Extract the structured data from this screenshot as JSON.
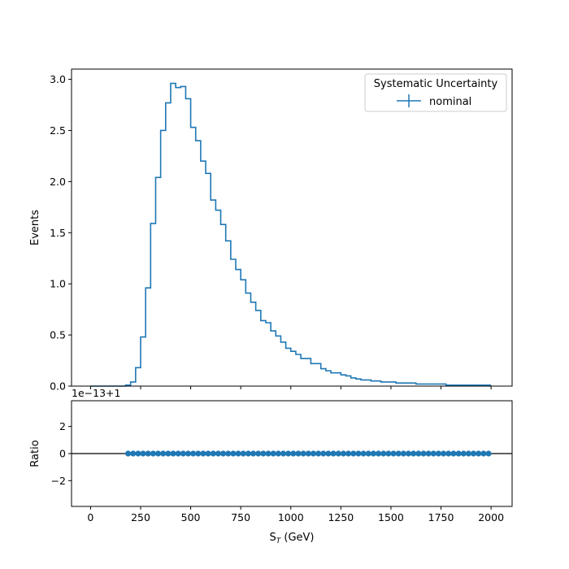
{
  "chart_data": [
    {
      "panel": "main",
      "type": "line",
      "style": "step-histogram",
      "title": "",
      "xlabel": "",
      "ylabel": "Events",
      "xlim": [
        -95,
        2105
      ],
      "ylim": [
        0,
        3.1
      ],
      "yticks": [
        0.0,
        0.5,
        1.0,
        1.5,
        2.0,
        2.5,
        3.0
      ],
      "ytick_labels": [
        "0.0",
        "0.5",
        "1.0",
        "1.5",
        "2.0",
        "2.5",
        "3.0"
      ],
      "xticks": [
        0,
        250,
        500,
        750,
        1000,
        1250,
        1500,
        1750,
        2000
      ],
      "grid": false,
      "legend": {
        "title": "Systematic Uncertainty",
        "placement": "top-right",
        "entries": [
          "nominal"
        ]
      },
      "color": "#1f77b4",
      "series": [
        {
          "name": "nominal",
          "bin_edges": [
            0,
            25,
            50,
            75,
            100,
            125,
            150,
            175,
            200,
            225,
            250,
            275,
            300,
            325,
            350,
            375,
            400,
            425,
            450,
            475,
            500,
            525,
            550,
            575,
            600,
            625,
            650,
            675,
            700,
            725,
            750,
            775,
            800,
            825,
            850,
            875,
            900,
            925,
            950,
            975,
            1000,
            1025,
            1050,
            1075,
            1100,
            1125,
            1150,
            1175,
            1200,
            1225,
            1250,
            1275,
            1300,
            1325,
            1350,
            1375,
            1400,
            1425,
            1450,
            1475,
            1500,
            1525,
            1550,
            1575,
            1600,
            1625,
            1650,
            1675,
            1700,
            1725,
            1750,
            1775,
            1800,
            1825,
            1850,
            1875,
            1900,
            1925,
            1950,
            1975,
            2000
          ],
          "values": [
            0.0,
            0.0,
            0.0,
            0.0,
            0.0,
            0.0,
            0.0,
            0.01,
            0.04,
            0.18,
            0.48,
            0.96,
            1.59,
            2.04,
            2.5,
            2.77,
            2.96,
            2.92,
            2.93,
            2.81,
            2.53,
            2.4,
            2.2,
            2.08,
            1.82,
            1.72,
            1.58,
            1.42,
            1.24,
            1.14,
            1.04,
            0.91,
            0.82,
            0.74,
            0.64,
            0.62,
            0.54,
            0.49,
            0.43,
            0.37,
            0.34,
            0.31,
            0.27,
            0.27,
            0.22,
            0.22,
            0.17,
            0.15,
            0.13,
            0.13,
            0.11,
            0.1,
            0.08,
            0.07,
            0.06,
            0.06,
            0.05,
            0.05,
            0.04,
            0.04,
            0.04,
            0.03,
            0.03,
            0.03,
            0.03,
            0.02,
            0.02,
            0.02,
            0.02,
            0.02,
            0.02,
            0.01,
            0.01,
            0.01,
            0.01,
            0.01,
            0.01,
            0.01,
            0.01,
            0.01
          ]
        }
      ]
    },
    {
      "panel": "ratio",
      "type": "scatter",
      "title": "",
      "xlabel": "S_T (GeV)",
      "ylabel": "Ratio",
      "offset_label": "1e−13+1",
      "xlim": [
        -95,
        2105
      ],
      "ylim": [
        -3.9,
        3.9
      ],
      "yticks": [
        -2,
        0,
        2
      ],
      "ytick_labels": [
        "−2",
        "0",
        "2"
      ],
      "xticks": [
        0,
        250,
        500,
        750,
        1000,
        1250,
        1500,
        1750,
        2000
      ],
      "xtick_labels": [
        "0",
        "250",
        "500",
        "750",
        "1000",
        "1250",
        "1500",
        "1750",
        "2000"
      ],
      "reference_line": 0,
      "grid": false,
      "color": "#1f77b4",
      "series": [
        {
          "x": [
            187.5,
            212.5,
            237.5,
            262.5,
            287.5,
            312.5,
            337.5,
            362.5,
            387.5,
            412.5,
            437.5,
            462.5,
            487.5,
            512.5,
            537.5,
            562.5,
            587.5,
            612.5,
            637.5,
            662.5,
            687.5,
            712.5,
            737.5,
            762.5,
            787.5,
            812.5,
            837.5,
            862.5,
            887.5,
            912.5,
            937.5,
            962.5,
            987.5,
            1012.5,
            1037.5,
            1062.5,
            1087.5,
            1112.5,
            1137.5,
            1162.5,
            1187.5,
            1212.5,
            1237.5,
            1262.5,
            1287.5,
            1312.5,
            1337.5,
            1362.5,
            1387.5,
            1412.5,
            1437.5,
            1462.5,
            1487.5,
            1512.5,
            1537.5,
            1562.5,
            1587.5,
            1612.5,
            1637.5,
            1662.5,
            1687.5,
            1712.5,
            1737.5,
            1762.5,
            1787.5,
            1812.5,
            1837.5,
            1862.5,
            1887.5,
            1912.5,
            1937.5,
            1962.5,
            1987.5
          ],
          "y": [
            0,
            0,
            0,
            0,
            0,
            0,
            0,
            0,
            0,
            0,
            0,
            0,
            0,
            0,
            0,
            0,
            0,
            0,
            0,
            0,
            0,
            0,
            0,
            0,
            0,
            0,
            0,
            0,
            0,
            0,
            0,
            0,
            0,
            0,
            0,
            0,
            0,
            0,
            0,
            0,
            0,
            0,
            0,
            0,
            0,
            0,
            0,
            0,
            0,
            0,
            0,
            0,
            0,
            0,
            0,
            0,
            0,
            0,
            0,
            0,
            0,
            0,
            0,
            0,
            0,
            0,
            0,
            0,
            0,
            0,
            0,
            0,
            0
          ]
        }
      ]
    }
  ]
}
